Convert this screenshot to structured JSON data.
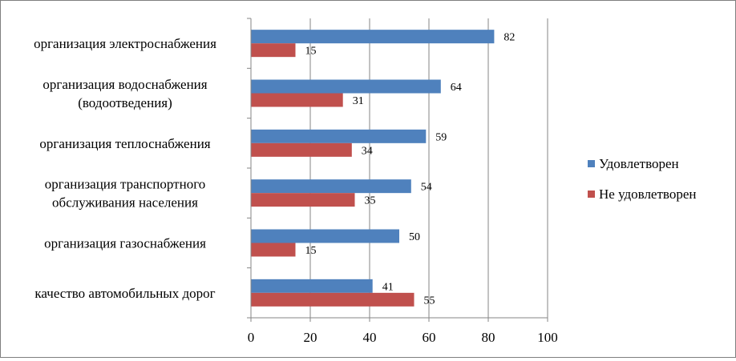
{
  "chart_data": {
    "type": "bar",
    "orientation": "horizontal",
    "categories": [
      [
        "организация электроснабжения"
      ],
      [
        "организация водоснабжения",
        "(водоотведения)"
      ],
      [
        "организация теплоснабжения"
      ],
      [
        "организация транспортного",
        "обслуживания  населения"
      ],
      [
        "организация газоснабжения"
      ],
      [
        "качество автомобильных дорог"
      ]
    ],
    "series": [
      {
        "name": "Удовлетворен",
        "color": "#4f81bd",
        "values": [
          82,
          64,
          59,
          54,
          50,
          41
        ]
      },
      {
        "name": "Не удовлетворен",
        "color": "#c0504d",
        "values": [
          15,
          31,
          34,
          35,
          15,
          55
        ]
      }
    ],
    "xlim": [
      0,
      100
    ],
    "xticks": [
      0,
      20,
      40,
      60,
      80,
      100
    ],
    "grid": "vertical",
    "legend_position": "right",
    "title": "",
    "xlabel": "",
    "ylabel": ""
  }
}
